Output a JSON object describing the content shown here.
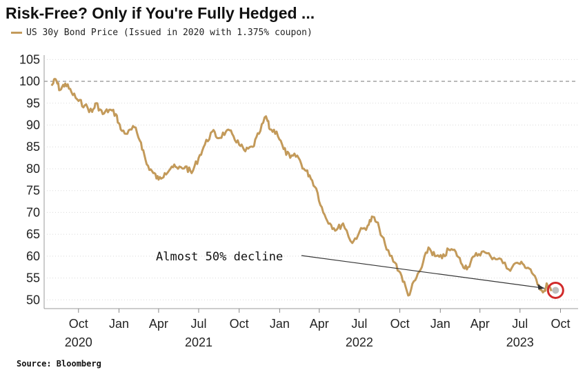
{
  "chart_data": {
    "type": "line",
    "title": "Risk-Free? Only if You're Fully Hedged ...",
    "source": "Source: Bloomberg",
    "series": [
      {
        "name": "US 30y Bond Price (Issued in 2020 with 1.375% coupon)",
        "color": "#c39a5a",
        "points": [
          [
            "2020-08-01",
            99
          ],
          [
            "2020-08-10",
            100.5
          ],
          [
            "2020-08-20",
            98
          ],
          [
            "2020-09-01",
            99.5
          ],
          [
            "2020-09-15",
            97.5
          ],
          [
            "2020-10-01",
            95.5
          ],
          [
            "2020-10-15",
            94.5
          ],
          [
            "2020-11-01",
            93
          ],
          [
            "2020-11-10",
            95
          ],
          [
            "2020-11-25",
            92.5
          ],
          [
            "2020-12-10",
            93.5
          ],
          [
            "2020-12-25",
            92.5
          ],
          [
            "2021-01-05",
            89
          ],
          [
            "2021-01-20",
            88
          ],
          [
            "2021-02-05",
            89.5
          ],
          [
            "2021-02-20",
            86
          ],
          [
            "2021-03-05",
            81
          ],
          [
            "2021-03-20",
            79
          ],
          [
            "2021-04-01",
            77.5
          ],
          [
            "2021-04-15",
            79
          ],
          [
            "2021-05-01",
            80.5
          ],
          [
            "2021-05-15",
            80
          ],
          [
            "2021-06-01",
            80.5
          ],
          [
            "2021-06-15",
            79
          ],
          [
            "2021-07-01",
            82.5
          ],
          [
            "2021-07-15",
            85.5
          ],
          [
            "2021-08-01",
            88.5
          ],
          [
            "2021-08-15",
            87
          ],
          [
            "2021-09-01",
            88.5
          ],
          [
            "2021-09-15",
            88
          ],
          [
            "2021-10-01",
            85.5
          ],
          [
            "2021-10-15",
            84
          ],
          [
            "2021-11-01",
            85
          ],
          [
            "2021-11-15",
            88
          ],
          [
            "2021-12-01",
            92
          ],
          [
            "2021-12-10",
            89
          ],
          [
            "2021-12-25",
            88.5
          ],
          [
            "2022-01-10",
            84.5
          ],
          [
            "2022-01-25",
            82.5
          ],
          [
            "2022-02-10",
            83
          ],
          [
            "2022-02-25",
            80
          ],
          [
            "2022-03-10",
            78.5
          ],
          [
            "2022-03-25",
            75.5
          ],
          [
            "2022-04-10",
            70
          ],
          [
            "2022-04-25",
            67.5
          ],
          [
            "2022-05-10",
            66
          ],
          [
            "2022-05-25",
            67.5
          ],
          [
            "2022-06-15",
            63
          ],
          [
            "2022-07-01",
            65.5
          ],
          [
            "2022-07-20",
            67
          ],
          [
            "2022-08-01",
            69
          ],
          [
            "2022-08-15",
            66.5
          ],
          [
            "2022-09-01",
            61.5
          ],
          [
            "2022-09-20",
            58.5
          ],
          [
            "2022-10-05",
            55.5
          ],
          [
            "2022-10-20",
            51
          ],
          [
            "2022-11-05",
            54.5
          ],
          [
            "2022-11-20",
            57.5
          ],
          [
            "2022-12-05",
            62
          ],
          [
            "2022-12-20",
            60
          ],
          [
            "2023-01-05",
            59.5
          ],
          [
            "2023-01-20",
            61.5
          ],
          [
            "2023-02-05",
            61
          ],
          [
            "2023-02-20",
            58
          ],
          [
            "2023-03-05",
            57.5
          ],
          [
            "2023-03-20",
            60
          ],
          [
            "2023-04-05",
            61
          ],
          [
            "2023-04-25",
            60
          ],
          [
            "2023-05-15",
            59.5
          ],
          [
            "2023-06-05",
            57
          ],
          [
            "2023-06-25",
            58.5
          ],
          [
            "2023-07-10",
            58
          ],
          [
            "2023-07-25",
            57
          ],
          [
            "2023-08-10",
            53.5
          ],
          [
            "2023-08-25",
            52
          ],
          [
            "2023-09-01",
            53.5
          ],
          [
            "2023-09-10",
            52
          ]
        ]
      }
    ],
    "xaxis": {
      "type": "date",
      "range": [
        "2020-07-15",
        "2023-11-10"
      ],
      "ticks": [
        {
          "date": "2020-10-01",
          "label": "Oct",
          "year": "2020"
        },
        {
          "date": "2021-01-01",
          "label": "Jan",
          "year": ""
        },
        {
          "date": "2021-04-01",
          "label": "Apr",
          "year": ""
        },
        {
          "date": "2021-07-01",
          "label": "Jul",
          "year": "2021"
        },
        {
          "date": "2021-10-01",
          "label": "Oct",
          "year": ""
        },
        {
          "date": "2022-01-01",
          "label": "Jan",
          "year": ""
        },
        {
          "date": "2022-04-01",
          "label": "Apr",
          "year": ""
        },
        {
          "date": "2022-07-01",
          "label": "Jul",
          "year": "2022"
        },
        {
          "date": "2022-10-01",
          "label": "Oct",
          "year": ""
        },
        {
          "date": "2023-01-01",
          "label": "Jan",
          "year": ""
        },
        {
          "date": "2023-04-01",
          "label": "Apr",
          "year": ""
        },
        {
          "date": "2023-07-01",
          "label": "Jul",
          "year": "2023"
        },
        {
          "date": "2023-10-01",
          "label": "Oct",
          "year": ""
        }
      ]
    },
    "yaxis": {
      "range": [
        48,
        106
      ],
      "ticks": [
        50,
        55,
        60,
        65,
        70,
        75,
        80,
        85,
        90,
        95,
        100,
        105
      ],
      "position": "left"
    },
    "reference_line": {
      "y": 100,
      "style": "dashed"
    },
    "grid": "horizontal dotted",
    "legend_position": "top-left",
    "annotation": {
      "text": "Almost 50% decline",
      "arrow_to": [
        "2023-09-01",
        52.5
      ],
      "marker_color": "#d12a2a"
    }
  }
}
